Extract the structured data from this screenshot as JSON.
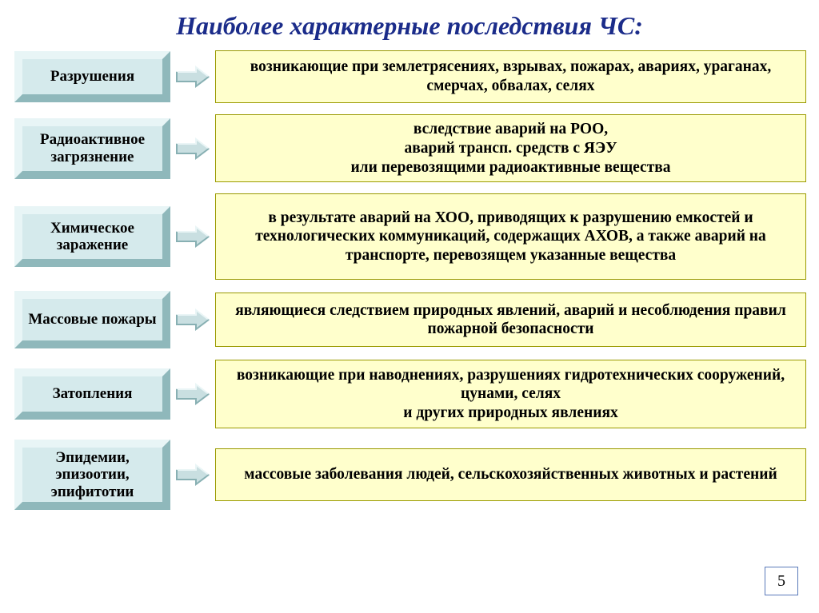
{
  "title": "Наиболее характерные последствия ЧС:",
  "title_color": "#1b2c8a",
  "background_color": "#ffffff",
  "category_box": {
    "fill": "#d5eaec",
    "light_bevel": "#e8f5f6",
    "dark_bevel": "#8fb8bb",
    "text_color": "#000000",
    "fontsize": 19,
    "width": 195
  },
  "desc_box": {
    "fill": "#ffffcc",
    "border": "#9a9a00",
    "text_color": "#000000",
    "fontsize": 19.5
  },
  "arrow": {
    "fill": "#c9dfe1",
    "stroke": "#6f9a9d",
    "light": "#eaf5f6",
    "dark": "#88b0b3"
  },
  "page_number": "5",
  "rows": [
    {
      "label": "Разрушения",
      "desc": "возникающие при землетрясениях, взрывах, пожарах, авариях, ураганах, смерчах, обвалах, селях",
      "cat_h": 64,
      "desc_h": 66
    },
    {
      "label": "Радиоактивное загрязнение",
      "desc": "вследствие аварий на РОО,\nаварий трансп. средств с ЯЭУ\nили перевозящими радиоактивные вещества",
      "cat_h": 76,
      "desc_h": 84
    },
    {
      "label": "Химическое заражение",
      "desc": "в результате аварий на ХОО, приводящих к разрушению емкостей и технологических коммуникаций, содержащих АХОВ, а также аварий  на транспорте, перевозящем указанные вещества",
      "cat_h": 76,
      "desc_h": 108
    },
    {
      "label": "Массовые пожары",
      "desc": "являющиеся следствием природных явлений, аварий и несоблюдения правил пожарной безопасности",
      "cat_h": 72,
      "desc_h": 68
    },
    {
      "label": "Затопления",
      "desc": "возникающие при наводнениях, разрушениях гидротехнических сооружений, цунами, селях\nи других природных явлениях",
      "cat_h": 64,
      "desc_h": 86
    },
    {
      "label": "Эпидемии, эпизоотии, эпифитотии",
      "desc": "массовые заболевания людей, сельскохозяйственных животных и растений",
      "cat_h": 88,
      "desc_h": 66
    }
  ]
}
